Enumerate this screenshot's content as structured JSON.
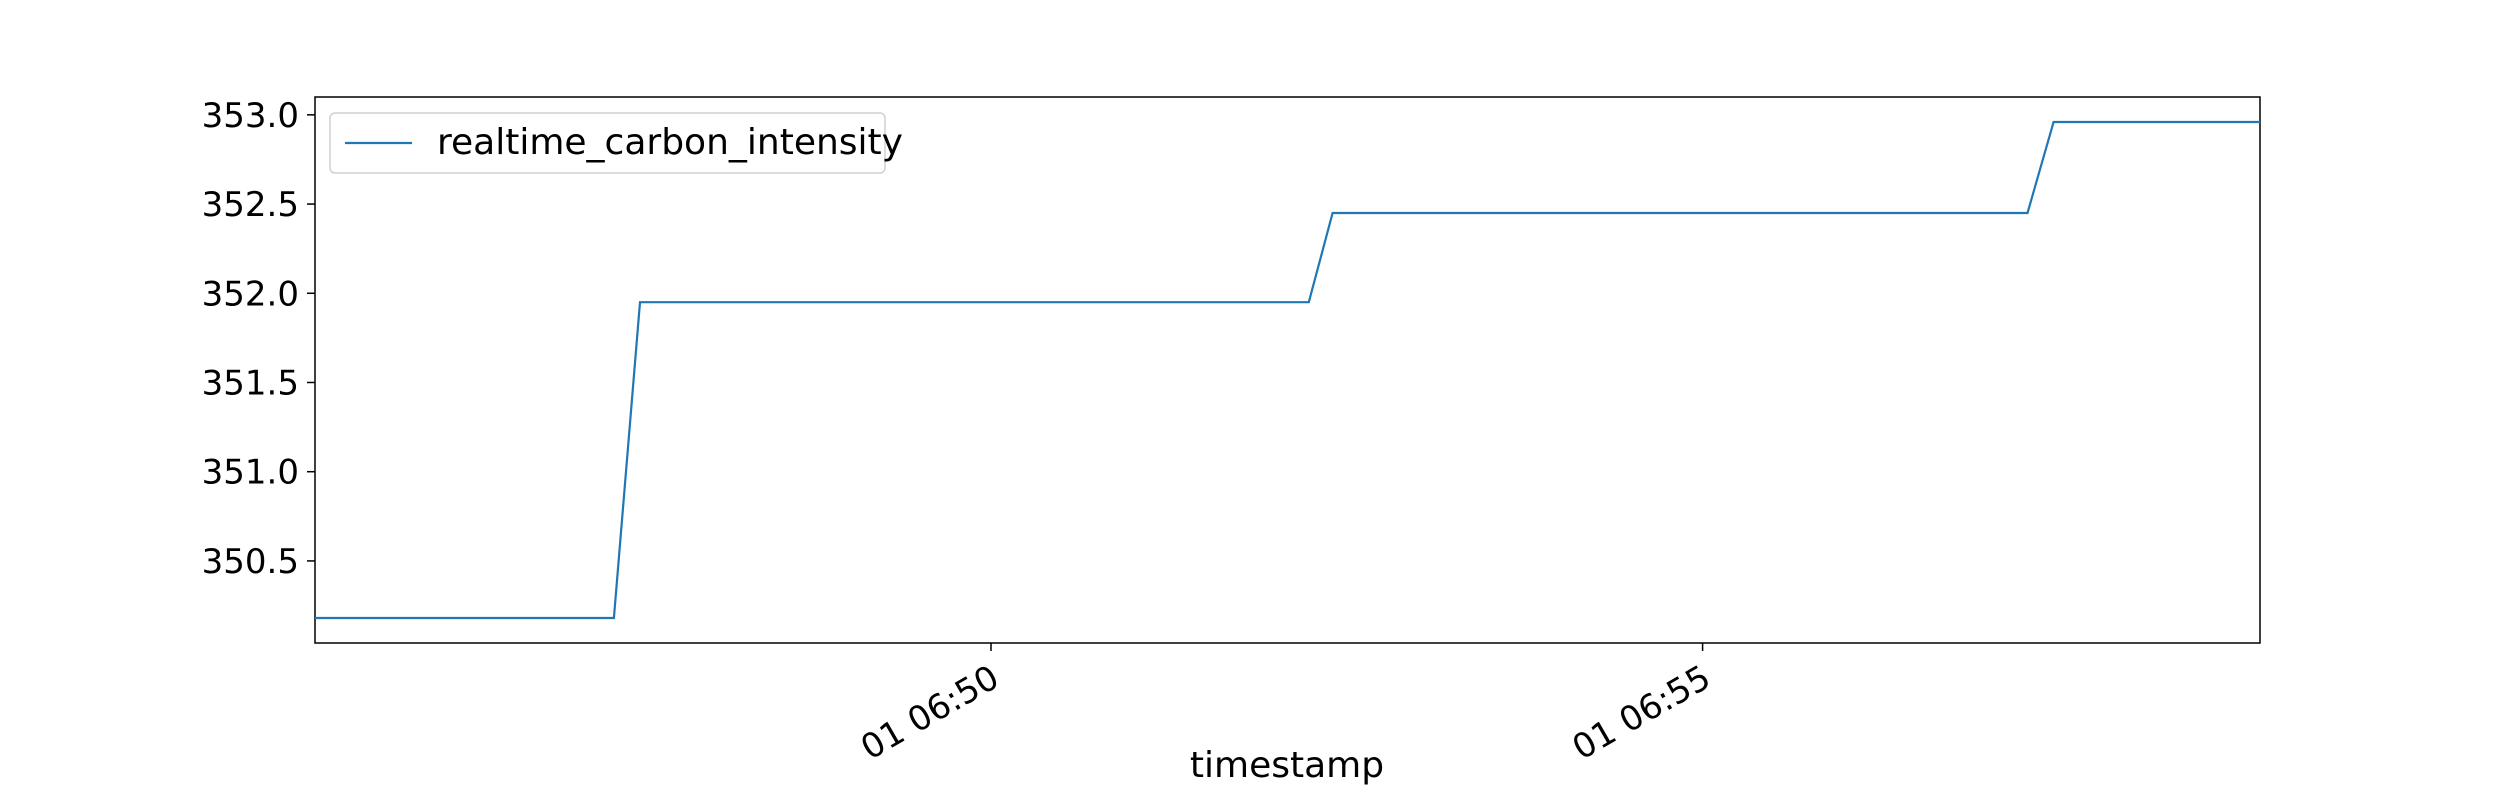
{
  "chart_data": {
    "type": "line",
    "title": "",
    "xlabel": "timestamp",
    "ylabel": "",
    "x_axis": {
      "ticks": [
        {
          "value": "06:50",
          "label": "01 06:50"
        },
        {
          "value": "06:55",
          "label": "01 06:55"
        }
      ],
      "range": [
        "06:45:15",
        "06:58:55"
      ]
    },
    "y_axis": {
      "ticks": [
        {
          "value": 350.5,
          "label": "350.5"
        },
        {
          "value": 351.0,
          "label": "351.0"
        },
        {
          "value": 351.5,
          "label": "351.5"
        },
        {
          "value": 352.0,
          "label": "352.0"
        },
        {
          "value": 352.5,
          "label": "352.5"
        },
        {
          "value": 353.0,
          "label": "353.0"
        }
      ],
      "range": [
        350.04,
        353.1
      ]
    },
    "grid": false,
    "legend": {
      "position": "top-left",
      "entries": [
        "realtime_carbon_intensity"
      ]
    },
    "colors": {
      "series": "#1f77b4",
      "axes": "#000000"
    },
    "series": [
      {
        "name": "realtime_carbon_intensity",
        "points": [
          {
            "x": "06:45:15",
            "y": 350.18
          },
          {
            "x": "06:47:21",
            "y": 350.18
          },
          {
            "x": "06:47:32",
            "y": 351.95
          },
          {
            "x": "06:52:14",
            "y": 351.95
          },
          {
            "x": "06:52:24",
            "y": 352.45
          },
          {
            "x": "06:57:17",
            "y": 352.45
          },
          {
            "x": "06:57:28",
            "y": 352.96
          },
          {
            "x": "06:58:55",
            "y": 352.96
          }
        ]
      }
    ]
  }
}
